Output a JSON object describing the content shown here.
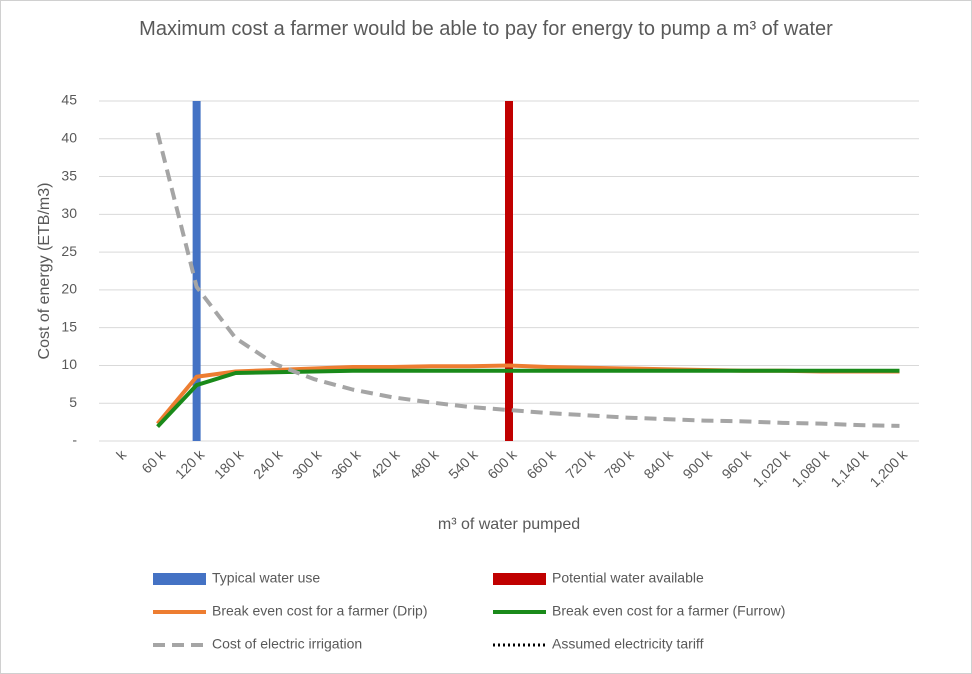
{
  "chart_data": {
    "type": "line",
    "title": "Maximum cost a farmer would be able to pay for energy to pump a m³ of water",
    "x_label": "m³ of water pumped",
    "y_label": "Cost of energy (ETB/m3)",
    "categories": [
      "k",
      "60 k",
      "120 k",
      "180 k",
      "240 k",
      "300 k",
      "360 k",
      "420 k",
      "480 k",
      "540 k",
      "600 k",
      "660 k",
      "720 k",
      "780 k",
      "840 k",
      "900 k",
      "960 k",
      "1,020 k",
      "1,080 k",
      "1,140 k",
      "1,200 k"
    ],
    "ylim": [
      0,
      45
    ],
    "yticks": [
      {
        "value": 0,
        "label": "-"
      },
      5,
      10,
      15,
      20,
      25,
      30,
      35,
      40,
      45
    ],
    "grid": true,
    "legend": "bottom",
    "series": [
      {
        "name": "Typical water use",
        "type": "bar",
        "color": "#4472c4",
        "values": [
          null,
          null,
          45,
          null,
          null,
          null,
          null,
          null,
          null,
          null,
          null,
          null,
          null,
          null,
          null,
          null,
          null,
          null,
          null,
          null,
          null
        ]
      },
      {
        "name": "Potential water available",
        "type": "bar",
        "color": "#c00000",
        "values": [
          null,
          null,
          null,
          null,
          null,
          null,
          null,
          null,
          null,
          null,
          45,
          null,
          null,
          null,
          null,
          null,
          null,
          null,
          null,
          null,
          null
        ]
      },
      {
        "name": "Break even cost for a farmer (Drip)",
        "type": "line",
        "dash": "solid",
        "color": "#ed7d31",
        "values": [
          null,
          2.3,
          8.5,
          9.2,
          9.4,
          9.6,
          9.8,
          9.8,
          9.9,
          9.9,
          10.0,
          9.8,
          9.7,
          9.6,
          9.5,
          9.4,
          9.3,
          9.3,
          9.2,
          9.2,
          9.2
        ]
      },
      {
        "name": "Break even cost for a farmer (Furrow)",
        "type": "line",
        "dash": "solid",
        "color": "#1a8a1a",
        "values": [
          null,
          1.9,
          7.4,
          9.0,
          9.1,
          9.2,
          9.3,
          9.3,
          9.3,
          9.3,
          9.3,
          9.3,
          9.3,
          9.3,
          9.3,
          9.3,
          9.3,
          9.3,
          9.3,
          9.3,
          9.3
        ]
      },
      {
        "name": "Cost of electric irrigation",
        "type": "line",
        "dash": "dashed",
        "color": "#a5a5a5",
        "values": [
          null,
          40.8,
          20.4,
          13.6,
          10.2,
          8.2,
          6.8,
          5.8,
          5.1,
          4.5,
          4.1,
          3.7,
          3.4,
          3.1,
          2.9,
          2.7,
          2.6,
          2.4,
          2.3,
          2.1,
          2.0
        ]
      },
      {
        "name": "Assumed electricity tariff",
        "type": "line",
        "dash": "dotted",
        "color": "#000000",
        "values": [
          null,
          null,
          null,
          null,
          null,
          null,
          null,
          null,
          null,
          null,
          null,
          null,
          null,
          null,
          null,
          null,
          null,
          null,
          null,
          null,
          null
        ]
      }
    ]
  }
}
